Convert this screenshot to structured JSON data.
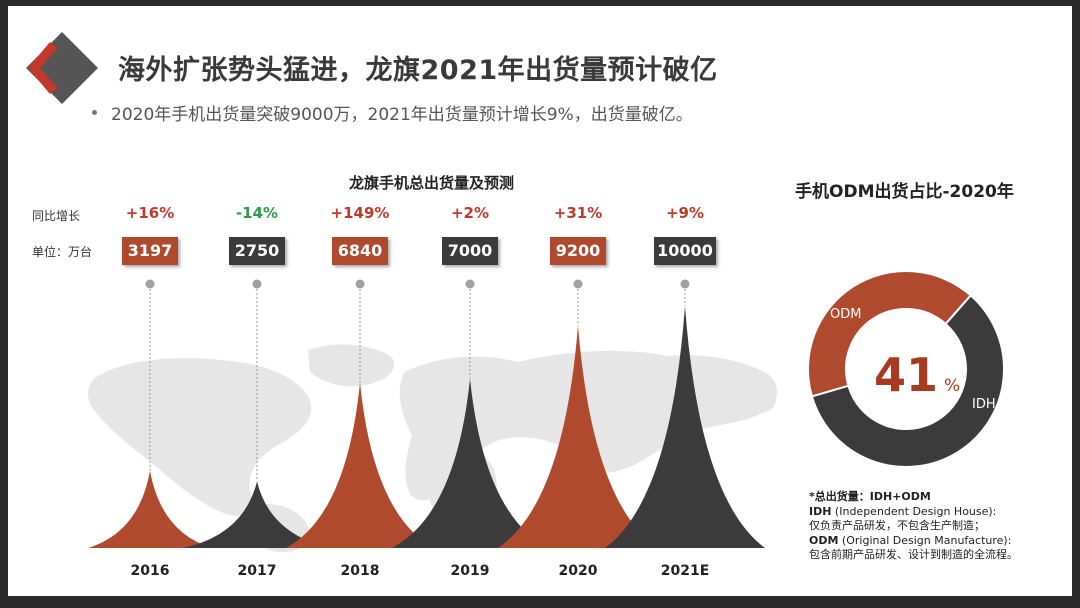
{
  "header": {
    "title": "海外扩张势头猛进，龙旗2021年出货量预计破亿",
    "bullet": "2020年手机出货量突破9000万，2021年出货量预计增长9%，出货量破亿。"
  },
  "labels": {
    "growth_row": "同比增长",
    "unit_row": "单位：万台"
  },
  "colors": {
    "red": "#b04a2e",
    "dark": "#3b3b3b",
    "green": "#2e9a4a",
    "title_red": "#c0392b"
  },
  "chart_data": [
    {
      "type": "bar",
      "title": "龙旗手机总出货量及预测",
      "categories": [
        "2016",
        "2017",
        "2018",
        "2019",
        "2020",
        "2021E"
      ],
      "values": [
        3197,
        2750,
        6840,
        7000,
        9200,
        10000
      ],
      "value_labels": [
        "3197",
        "2750",
        "6840",
        "7000",
        "9200",
        "10000"
      ],
      "growth": [
        "+16%",
        "-14%",
        "+149%",
        "+2%",
        "+31%",
        "+9%"
      ],
      "unit": "万台",
      "ylim": [
        0,
        10000
      ]
    },
    {
      "type": "pie",
      "title": "手机ODM出货占比-2020年",
      "categories": [
        "ODM",
        "IDH"
      ],
      "values": [
        41,
        59
      ],
      "center_value": "41",
      "center_unit": "%"
    }
  ],
  "notes": {
    "line1": "*总出货量：IDH+ODM",
    "idh_term": "IDH",
    "idh_full": " (Independent Design House):",
    "idh_desc": "仅负责产品研发，不包含生产制造；",
    "odm_term": "ODM",
    "odm_full": " (Original Design Manufacture):",
    "odm_desc": "包含前期产品研发、设计到制造的全流程。"
  }
}
